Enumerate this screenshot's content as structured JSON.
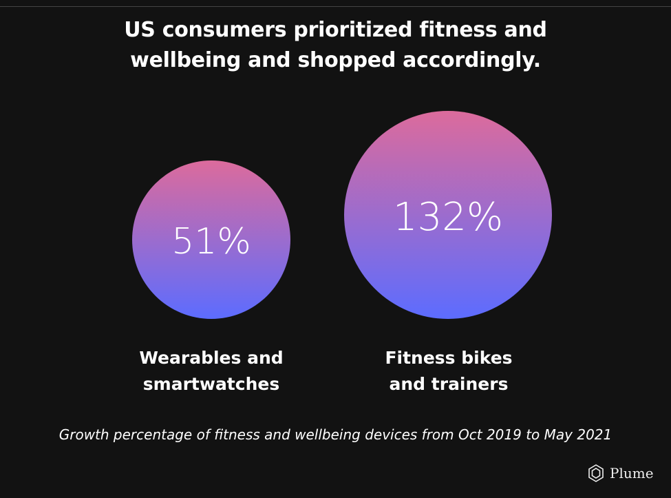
{
  "title": "US consumers prioritized fitness and wellbeing and shopped accordingly.",
  "title_lines": [
    "US consumers prioritized fitness and",
    "wellbeing and shopped accordingly."
  ],
  "caption": "Growth percentage of fitness and wellbeing devices from Oct 2019 to May 2021",
  "brand": {
    "name": "Plume",
    "icon": "plume-hexagon-logo-icon"
  },
  "colors": {
    "background": "#121212",
    "gradient_top": "#dc6b9c",
    "gradient_bottom": "#5c6cff",
    "text": "#ffffff"
  },
  "chart_data": {
    "type": "bubble",
    "title": "US consumers prioritized fitness and wellbeing and shopped accordingly.",
    "subtitle": "Growth percentage of fitness and wellbeing devices from Oct 2019 to May 2021",
    "unit": "%",
    "categories": [
      "Wearables and smartwatches",
      "Fitness bikes and trainers"
    ],
    "category_lines": [
      [
        "Wearables and",
        "smartwatches"
      ],
      [
        "Fitness bikes",
        "and trainers"
      ]
    ],
    "values": [
      51,
      132
    ],
    "data_labels": [
      "51%",
      "132%"
    ]
  }
}
